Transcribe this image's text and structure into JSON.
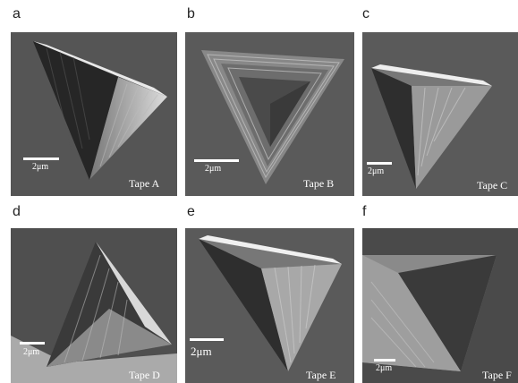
{
  "panels": [
    {
      "letter": "a",
      "scale": "2μm",
      "label": "Tape A"
    },
    {
      "letter": "b",
      "scale": "2μm",
      "label": "Tape B"
    },
    {
      "letter": "c",
      "scale": "2μm",
      "label": "Tape C"
    },
    {
      "letter": "d",
      "scale": "2μm",
      "label": "Tape D"
    },
    {
      "letter": "e",
      "scale": "2μm",
      "label": "Tape E"
    },
    {
      "letter": "f",
      "scale": "2μm",
      "label": "Tape F"
    }
  ]
}
